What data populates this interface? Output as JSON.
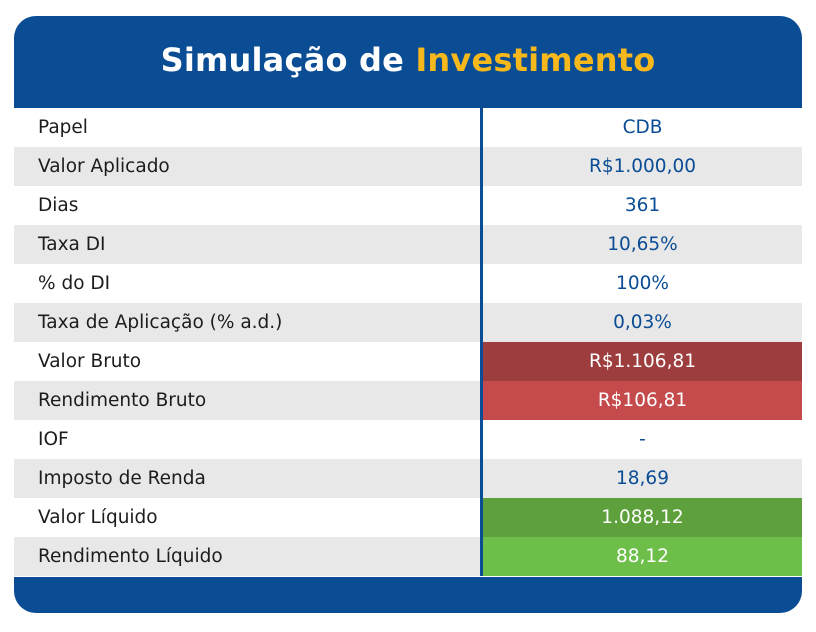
{
  "title": {
    "prefix": "Simulação de",
    "accent": "Investimento"
  },
  "colors": {
    "brand_blue": "#0b4d94",
    "accent_yellow": "#f6b81a",
    "bruto_dark": "#9e3d3e",
    "bruto": "#c44a4b",
    "liquido_dark": "#5ea13c",
    "liquido": "#6dbf4a"
  },
  "rows": [
    {
      "label": "Papel",
      "value": "CDB"
    },
    {
      "label": "Valor Aplicado",
      "value": "R$1.000,00"
    },
    {
      "label": "Dias",
      "value": "361"
    },
    {
      "label": "Taxa DI",
      "value": "10,65%"
    },
    {
      "label": "% do DI",
      "value": "100%"
    },
    {
      "label": "Taxa de Aplicação (% a.d.)",
      "value": "0,03%"
    },
    {
      "label": "Valor Bruto",
      "value": "R$1.106,81"
    },
    {
      "label": "Rendimento Bruto",
      "value": "R$106,81"
    },
    {
      "label": "IOF",
      "value": "-"
    },
    {
      "label": "Imposto de Renda",
      "value": "18,69"
    },
    {
      "label": "Valor Líquido",
      "value": "1.088,12"
    },
    {
      "label": "Rendimento Líquido",
      "value": "88,12"
    }
  ]
}
